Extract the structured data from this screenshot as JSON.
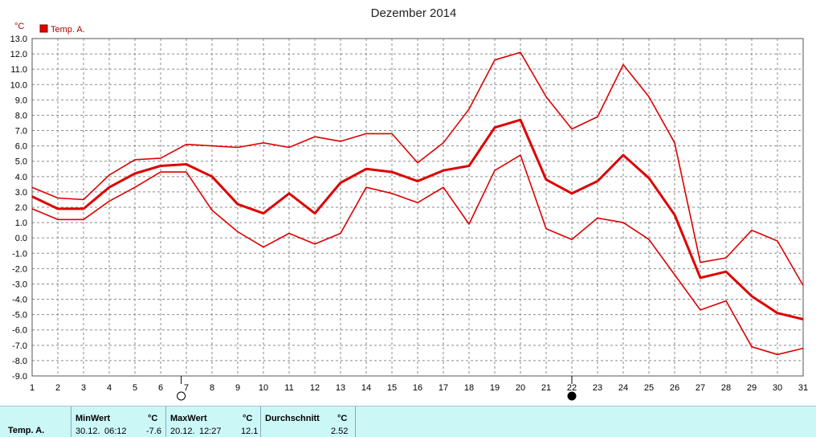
{
  "chart_data": {
    "type": "line",
    "title": "Dezember 2014",
    "y_unit": "°C",
    "ylim": [
      -9,
      13
    ],
    "y_ticks": [
      "13.0",
      "12.0",
      "11.0",
      "10.0",
      "9.0",
      "8.0",
      "7.0",
      "6.0",
      "5.0",
      "4.0",
      "3.0",
      "2.0",
      "1.0",
      "0.0",
      "-1.0",
      "-2.0",
      "-3.0",
      "-4.0",
      "-5.0",
      "-6.0",
      "-7.0",
      "-8.0",
      "-9.0"
    ],
    "x": [
      1,
      2,
      3,
      4,
      5,
      6,
      7,
      8,
      9,
      10,
      11,
      12,
      13,
      14,
      15,
      16,
      17,
      18,
      19,
      20,
      21,
      22,
      23,
      24,
      25,
      26,
      27,
      28,
      29,
      30,
      31
    ],
    "grid": true,
    "legend": {
      "label": "Temp. A.",
      "color": "#dd0000",
      "position": "top-left"
    },
    "series": [
      {
        "role": "max",
        "values": [
          3.3,
          2.6,
          2.5,
          4.1,
          5.1,
          5.2,
          6.1,
          6.0,
          5.9,
          6.2,
          5.9,
          6.6,
          6.3,
          6.8,
          6.8,
          4.9,
          6.2,
          8.4,
          11.6,
          12.1,
          9.2,
          7.1,
          7.9,
          11.3,
          9.2,
          6.2,
          -1.6,
          -1.3,
          0.5,
          -0.2,
          -3.1
        ]
      },
      {
        "role": "mean",
        "values": [
          2.7,
          1.9,
          1.9,
          3.3,
          4.2,
          4.7,
          4.8,
          4.0,
          2.2,
          1.6,
          2.9,
          1.6,
          3.6,
          4.5,
          4.3,
          3.7,
          4.4,
          4.7,
          7.2,
          7.7,
          3.8,
          2.9,
          3.7,
          5.4,
          3.9,
          1.5,
          -2.6,
          -2.2,
          -3.8,
          -4.9,
          -5.3
        ]
      },
      {
        "role": "min",
        "values": [
          1.9,
          1.2,
          1.2,
          2.4,
          3.3,
          4.3,
          4.3,
          1.8,
          0.4,
          -0.6,
          0.3,
          -0.4,
          0.3,
          3.3,
          2.9,
          2.3,
          3.3,
          0.9,
          4.4,
          5.4,
          0.6,
          -0.1,
          1.3,
          1.0,
          -0.1,
          -2.4,
          -4.7,
          -4.1,
          -7.1,
          -7.6,
          -7.2
        ]
      }
    ],
    "moon_phases": [
      {
        "day": 6.8,
        "phase": "full-moon"
      },
      {
        "day": 22,
        "phase": "new-moon"
      }
    ]
  },
  "stats": {
    "row_label": "Temp. A.",
    "min": {
      "header": "MinWert",
      "unit": "°C",
      "date": "30.12.",
      "time": "06:12",
      "value": "-7.6"
    },
    "max": {
      "header": "MaxWert",
      "unit": "°C",
      "date": "20.12.",
      "time": "12:27",
      "value": "12.1"
    },
    "avg": {
      "header": "Durchschnitt",
      "unit": "°C",
      "value": "2.52"
    }
  }
}
